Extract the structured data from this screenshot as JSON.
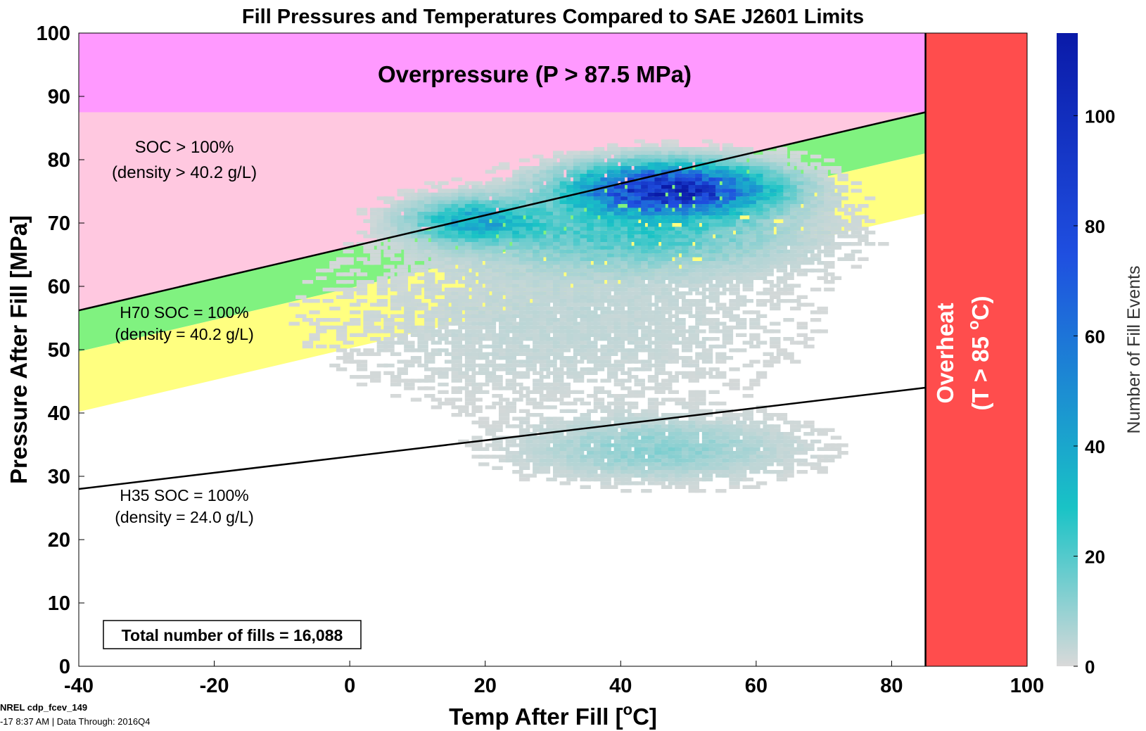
{
  "chart_data": {
    "type": "heatmap",
    "title": "Fill Pressures and Temperatures Compared to SAE J2601 Limits",
    "xlabel": "Temp After Fill [",
    "xlabel_unit": "o",
    "xlabel_tail": "C]",
    "ylabel": "Pressure After Fill [MPa]",
    "xlim": [
      -40,
      100
    ],
    "ylim": [
      0,
      100
    ],
    "xticks": [
      -40,
      -20,
      0,
      20,
      40,
      60,
      80,
      100
    ],
    "yticks": [
      0,
      10,
      20,
      30,
      40,
      50,
      60,
      70,
      80,
      90,
      100
    ],
    "grid": false,
    "colorbar": {
      "label": "Number of Fill Events",
      "ticks": [
        0,
        20,
        40,
        60,
        80,
        100
      ],
      "range": [
        0,
        115
      ],
      "colors": [
        "#d9d9d9",
        "#19c3c6",
        "#1f4fe0",
        "#0a1aa8"
      ]
    },
    "regions": [
      {
        "name": "overpressure",
        "label": "Overpressure (P > 87.5 MPa)",
        "color": "#ff99ff",
        "y_min": 87.5,
        "y_max": 100,
        "x_max": 85
      },
      {
        "name": "soc-over-100",
        "label_line1": "SOC > 100%",
        "label_line2": "(density > 40.2 g/L)",
        "color": "#ffc8e0"
      },
      {
        "name": "band-green",
        "color": "#80f280",
        "offset_low": -6.5
      },
      {
        "name": "band-yellow",
        "color": "#ffff80",
        "offset_low": -16.0
      },
      {
        "name": "overheat",
        "label_line1": "Overheat",
        "label_line2": "(T > 85 ",
        "label_unit": "o",
        "label_tail": "C)",
        "color": "#ff4d4d",
        "x_min": 85,
        "x_max": 100
      }
    ],
    "limit_lines": [
      {
        "name": "h70-soc-100",
        "label_line1": "H70 SOC = 100%",
        "label_line2": "(density = 40.2 g/L)",
        "points": [
          [
            -40,
            56.2
          ],
          [
            85,
            87.5
          ]
        ]
      },
      {
        "name": "h35-soc-100",
        "label_line1": "H35 SOC = 100%",
        "label_line2": "(density = 24.0 g/L)",
        "points": [
          [
            -40,
            28.0
          ],
          [
            85,
            44.0
          ]
        ]
      }
    ],
    "density_clusters": [
      {
        "x": 47,
        "y": 75,
        "peak": 110,
        "sx": 9,
        "sy": 2.5
      },
      {
        "x": 18,
        "y": 70,
        "peak": 38,
        "sx": 6,
        "sy": 2.2
      },
      {
        "x": 42,
        "y": 68,
        "peak": 22,
        "sx": 14,
        "sy": 3.5
      },
      {
        "x": 45,
        "y": 34,
        "peak": 12,
        "sx": 12,
        "sy": 3.0
      },
      {
        "x": 30,
        "y": 55,
        "peak": 4,
        "sx": 22,
        "sy": 9.0
      }
    ],
    "annotation": "Total number of fills = 16,088"
  },
  "footer": {
    "line1": "NREL cdp_fcev_149",
    "line2": "-17  8:37 AM | Data Through: 2016Q4"
  }
}
